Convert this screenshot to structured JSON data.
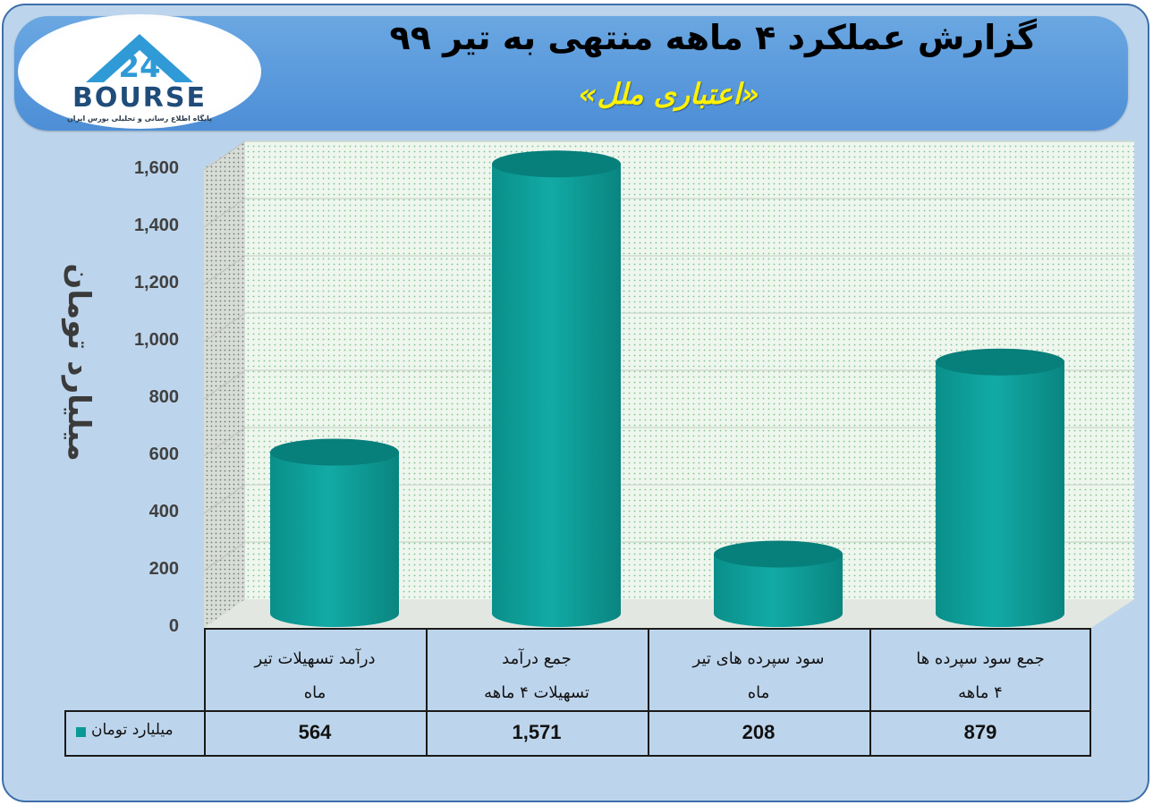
{
  "header": {
    "title": "گزارش عملکرد ۴ ماهه منتهی به تیر ۹۹",
    "subtitle": "«اعتباری ملل»"
  },
  "logo": {
    "name": "BOURSE",
    "tagline": "پایگاه اطلاع رسانی و تحلیلی بورس ایران",
    "icon": "24-triangle-logo"
  },
  "colors": {
    "bar": "#0a9a95",
    "bar_top": "#077f7b",
    "plot_background": "#eef6ee",
    "banner": "#5a9adb",
    "frame": "#bdd5ec"
  },
  "chart_data": {
    "type": "bar",
    "style": "3d-cylinder",
    "ylabel": "میلیارد تومان",
    "ylim": [
      0,
      1600
    ],
    "yticks": [
      "0",
      "200",
      "400",
      "600",
      "800",
      "1,000",
      "1,200",
      "1,400",
      "1,600"
    ],
    "ytick_values": [
      0,
      200,
      400,
      600,
      800,
      1000,
      1200,
      1400,
      1600
    ],
    "grid": true,
    "categories": [
      [
        "درآمد تسهیلات تیر",
        "ماه"
      ],
      [
        "جمع درآمد",
        "تسهیلات ۴ ماهه"
      ],
      [
        "سود سپرده های تیر",
        "ماه"
      ],
      [
        "جمع سود سپرده ها",
        "۴ ماهه"
      ]
    ],
    "series": [
      {
        "name": "میلیارد تومان",
        "values": [
          564,
          1571,
          208,
          879
        ],
        "labels": [
          "564",
          "1,571",
          "208",
          "879"
        ]
      }
    ],
    "legend": "table-left"
  }
}
